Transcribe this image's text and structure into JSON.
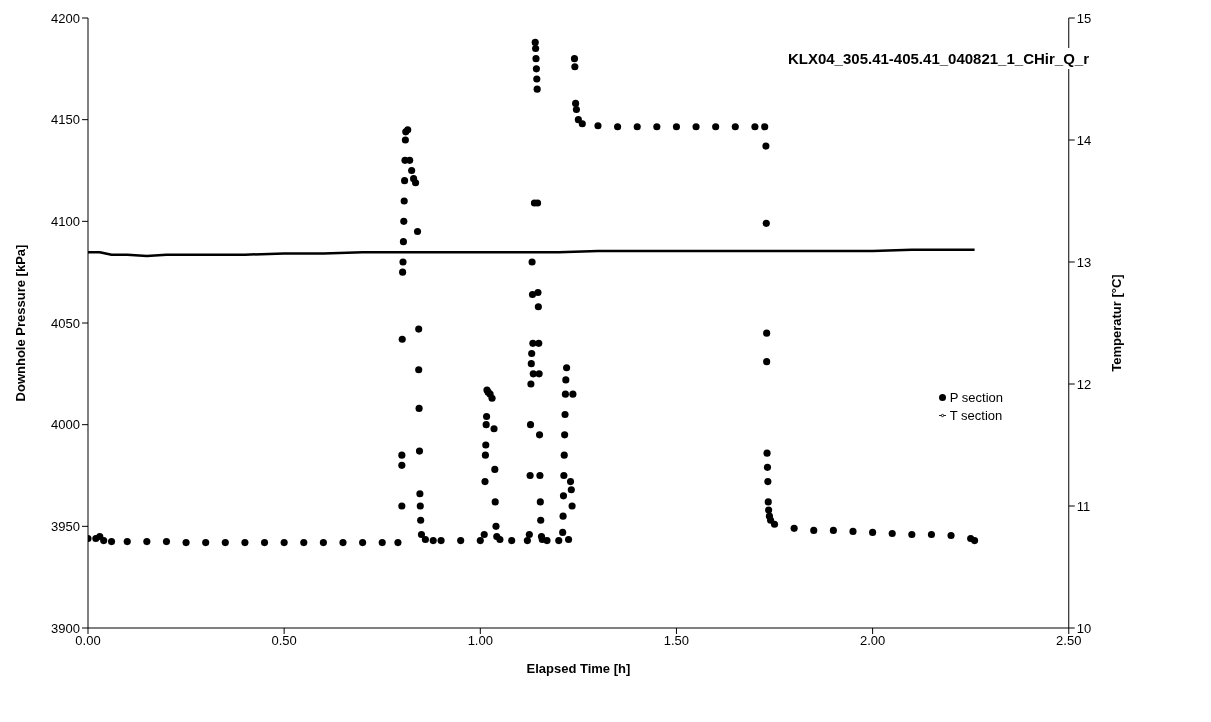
{
  "chart_data": {
    "type": "scatter",
    "title": "KLX04_305.41-405.41_040821_1_CHir_Q_r",
    "xlabel": "Elapsed Time [h]",
    "ylabel": "Downhole Pressure [kPa]",
    "y2label": "Temperatur [°C]",
    "xlim": [
      0,
      2.5
    ],
    "xticks": [
      {
        "value": 0,
        "label": "0.00"
      },
      {
        "value": 0.5,
        "label": "0.50"
      },
      {
        "value": 1,
        "label": "1.00"
      },
      {
        "value": 1.5,
        "label": "1.50"
      },
      {
        "value": 2,
        "label": "2.00"
      },
      {
        "value": 2.5,
        "label": "2.50"
      }
    ],
    "ylim": [
      3900,
      4200
    ],
    "yticks": [
      3900,
      3950,
      4000,
      4050,
      4100,
      4150,
      4200
    ],
    "y2lim": [
      10,
      15
    ],
    "y2ticks": [
      10,
      11,
      12,
      13,
      14,
      15
    ],
    "legend": "right",
    "grid": false,
    "series": [
      {
        "name": "P section",
        "marker": "circle",
        "color": "#000000",
        "x": [
          0,
          0.02,
          0.03,
          0.04,
          0.06,
          0.1,
          0.15,
          0.2,
          0.25,
          0.3,
          0.35,
          0.4,
          0.45,
          0.5,
          0.55,
          0.6,
          0.65,
          0.7,
          0.75,
          0.79,
          0.8,
          0.8,
          0.8,
          0.801,
          0.802,
          0.803,
          0.804,
          0.805,
          0.806,
          0.807,
          0.808,
          0.809,
          0.81,
          0.815,
          0.82,
          0.825,
          0.83,
          0.835,
          0.84,
          0.843,
          0.843,
          0.844,
          0.845,
          0.846,
          0.847,
          0.848,
          0.85,
          0.86,
          0.88,
          0.9,
          0.95,
          1.0,
          1.01,
          1.012,
          1.013,
          1.014,
          1.015,
          1.016,
          1.017,
          1.02,
          1.025,
          1.03,
          1.035,
          1.037,
          1.038,
          1.04,
          1.042,
          1.05,
          1.08,
          1.12,
          1.125,
          1.127,
          1.128,
          1.129,
          1.13,
          1.131,
          1.132,
          1.133,
          1.134,
          1.135,
          1.138,
          1.14,
          1.141,
          1.142,
          1.143,
          1.144,
          1.145,
          1.146,
          1.147,
          1.148,
          1.149,
          1.15,
          1.151,
          1.152,
          1.153,
          1.154,
          1.156,
          1.158,
          1.17,
          1.2,
          1.21,
          1.211,
          1.212,
          1.213,
          1.214,
          1.215,
          1.216,
          1.217,
          1.218,
          1.22,
          1.225,
          1.23,
          1.232,
          1.234,
          1.236,
          1.24,
          1.241,
          1.243,
          1.245,
          1.25,
          1.26,
          1.3,
          1.35,
          1.4,
          1.45,
          1.5,
          1.55,
          1.6,
          1.65,
          1.7,
          1.725,
          1.728,
          1.729,
          1.73,
          1.73,
          1.731,
          1.732,
          1.733,
          1.734,
          1.735,
          1.737,
          1.74,
          1.75,
          1.8,
          1.85,
          1.9,
          1.95,
          2.0,
          2.05,
          2.1,
          2.15,
          2.2,
          2.25,
          2.26
        ],
        "values": [
          3944,
          3944,
          3945,
          3943,
          3942.5,
          3942.5,
          3942.5,
          3942.5,
          3942,
          3942,
          3942,
          3942,
          3942,
          3942,
          3942,
          3942,
          3942,
          3942,
          3942,
          3942,
          3960,
          3980,
          3985,
          4042,
          4075,
          4080,
          4090,
          4100,
          4110,
          4120,
          4130,
          4140,
          4144,
          4145,
          4130,
          4125,
          4121,
          4119,
          4095,
          4047,
          4027,
          4008,
          3987,
          3966,
          3960,
          3953,
          3946,
          3943.5,
          3943,
          3943,
          3943,
          3943,
          3946,
          3972,
          3985,
          3990,
          4000,
          4004,
          4017,
          4016,
          4015,
          4013,
          3998,
          3978,
          3962,
          3950,
          3945,
          3943.5,
          3943,
          3943,
          3946,
          3975,
          4000,
          4020,
          4030,
          4035,
          4080,
          4064,
          4040,
          4025,
          4109,
          4188,
          4185,
          4180,
          4175,
          4170,
          4165,
          4109,
          4065,
          4058,
          4040,
          4025,
          3995,
          3975,
          3962,
          3953,
          3945,
          3943.5,
          3943,
          3943,
          3947,
          3955,
          3965,
          3975,
          3985,
          3995,
          4005,
          4015,
          4022,
          4028,
          3943.5,
          3972,
          3968,
          3960,
          4015,
          4180,
          4176,
          4158,
          4155,
          4150,
          4148,
          4147,
          4146.5,
          4146.5,
          4146.5,
          4146.5,
          4146.5,
          4146.5,
          4146.5,
          4146.5,
          4146.5,
          4137,
          4099,
          4045,
          4031,
          3986,
          3979,
          3972,
          3962,
          3958,
          3955,
          3953,
          3951,
          3949,
          3948,
          3948,
          3947.5,
          3947,
          3946.5,
          3946,
          3946,
          3945.5,
          3944,
          3943
        ]
      },
      {
        "name": "T section",
        "type": "line",
        "axis": "y2",
        "marker": "none",
        "line_style": "solid",
        "color": "#000000",
        "x": [
          0,
          0.03,
          0.06,
          0.1,
          0.15,
          0.2,
          0.3,
          0.4,
          0.5,
          0.6,
          0.7,
          0.8,
          0.9,
          1.0,
          1.1,
          1.2,
          1.3,
          1.4,
          1.5,
          1.6,
          1.7,
          1.8,
          1.9,
          2.0,
          2.1,
          2.2,
          2.26
        ],
        "values": [
          13.08,
          13.08,
          13.06,
          13.06,
          13.05,
          13.06,
          13.06,
          13.06,
          13.07,
          13.07,
          13.08,
          13.08,
          13.08,
          13.08,
          13.08,
          13.08,
          13.09,
          13.09,
          13.09,
          13.09,
          13.09,
          13.09,
          13.09,
          13.09,
          13.1,
          13.1,
          13.1
        ]
      }
    ]
  }
}
